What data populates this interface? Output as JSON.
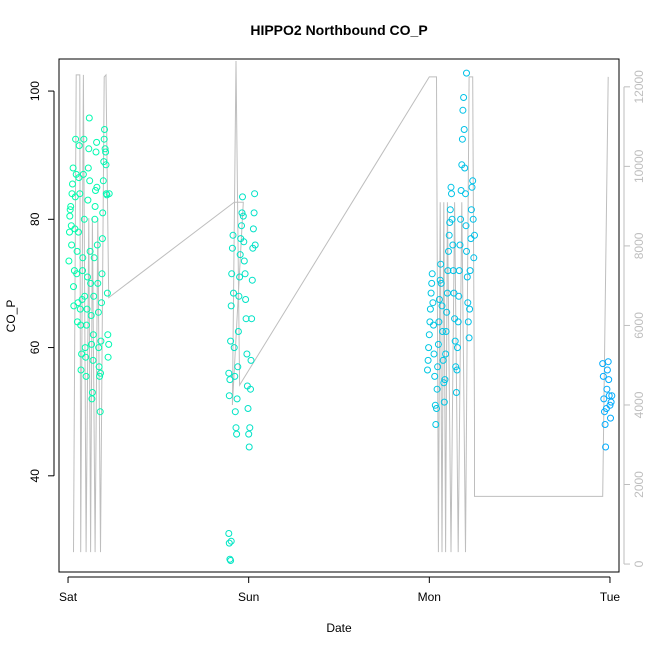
{
  "chart_data": {
    "type": "scatter",
    "title": "HIPPO2 Northbound CO_P",
    "xlabel": "Date",
    "ylabel": "CO_P",
    "x_axis": {
      "type": "date",
      "range_days": [
        -0.05,
        3.05
      ],
      "ticks": [
        {
          "label": "Sat",
          "day": 0
        },
        {
          "label": "Sun",
          "day": 1
        },
        {
          "label": "Mon",
          "day": 2
        },
        {
          "label": "Tue",
          "day": 3
        }
      ]
    },
    "y_axis": {
      "range": [
        25,
        105
      ],
      "ticks": [
        40,
        60,
        80,
        100
      ]
    },
    "y2_axis": {
      "side": "right",
      "color": "#bebebe",
      "range": [
        -200,
        12700
      ],
      "ticks": [
        0,
        2000,
        4000,
        6000,
        8000,
        10000,
        12000
      ]
    },
    "grid": false,
    "legend": "none",
    "colors": {
      "series_start": "#00ffaa",
      "series_end": "#00aaff",
      "altitude_line": "#bebebe"
    },
    "series": [
      {
        "kind": "points",
        "color_gradient": [
          "#00ffaa",
          "#00aaff"
        ],
        "points": [
          [
            0.005,
            73.5
          ],
          [
            0.008,
            78
          ],
          [
            0.01,
            80.5
          ],
          [
            0.012,
            81.5
          ],
          [
            0.015,
            82
          ],
          [
            0.018,
            79
          ],
          [
            0.02,
            76
          ],
          [
            0.022,
            84
          ],
          [
            0.025,
            85.5
          ],
          [
            0.028,
            88
          ],
          [
            0.03,
            69.5
          ],
          [
            0.032,
            66.5
          ],
          [
            0.035,
            72
          ],
          [
            0.038,
            78.5
          ],
          [
            0.04,
            83.5
          ],
          [
            0.042,
            92.5
          ],
          [
            0.045,
            87
          ],
          [
            0.048,
            71.5
          ],
          [
            0.05,
            75
          ],
          [
            0.052,
            64
          ],
          [
            0.055,
            67
          ],
          [
            0.058,
            78
          ],
          [
            0.06,
            86.5
          ],
          [
            0.062,
            91.5
          ],
          [
            0.065,
            84
          ],
          [
            0.068,
            66
          ],
          [
            0.07,
            63.5
          ],
          [
            0.072,
            56.5
          ],
          [
            0.075,
            59
          ],
          [
            0.078,
            67.5
          ],
          [
            0.08,
            72
          ],
          [
            0.082,
            74
          ],
          [
            0.085,
            87
          ],
          [
            0.088,
            92.5
          ],
          [
            0.09,
            80
          ],
          [
            0.092,
            68
          ],
          [
            0.095,
            60
          ],
          [
            0.098,
            58.5
          ],
          [
            0.1,
            55.5
          ],
          [
            0.102,
            63.5
          ],
          [
            0.105,
            66
          ],
          [
            0.108,
            71
          ],
          [
            0.11,
            83
          ],
          [
            0.112,
            88
          ],
          [
            0.115,
            91
          ],
          [
            0.118,
            95.8
          ],
          [
            0.12,
            86
          ],
          [
            0.122,
            75
          ],
          [
            0.125,
            70
          ],
          [
            0.128,
            65
          ],
          [
            0.13,
            60.5
          ],
          [
            0.132,
            52
          ],
          [
            0.135,
            53
          ],
          [
            0.138,
            58
          ],
          [
            0.14,
            62
          ],
          [
            0.142,
            68
          ],
          [
            0.145,
            74
          ],
          [
            0.148,
            80
          ],
          [
            0.15,
            82
          ],
          [
            0.152,
            84.5
          ],
          [
            0.155,
            90.5
          ],
          [
            0.158,
            92
          ],
          [
            0.16,
            85
          ],
          [
            0.162,
            76
          ],
          [
            0.165,
            70
          ],
          [
            0.168,
            65.5
          ],
          [
            0.17,
            60
          ],
          [
            0.172,
            57
          ],
          [
            0.175,
            55.5
          ],
          [
            0.178,
            50
          ],
          [
            0.18,
            56
          ],
          [
            0.182,
            61
          ],
          [
            0.185,
            67
          ],
          [
            0.188,
            71.5
          ],
          [
            0.19,
            77
          ],
          [
            0.192,
            81
          ],
          [
            0.195,
            86
          ],
          [
            0.198,
            89
          ],
          [
            0.2,
            92.5
          ],
          [
            0.202,
            94
          ],
          [
            0.205,
            91
          ],
          [
            0.208,
            90.5
          ],
          [
            0.21,
            88.5
          ],
          [
            0.212,
            84
          ],
          [
            0.215,
            83.8
          ],
          [
            0.218,
            68.5
          ],
          [
            0.22,
            62
          ],
          [
            0.222,
            58.5
          ],
          [
            0.225,
            60.5
          ],
          [
            0.228,
            84
          ],
          [
            0.89,
            56
          ],
          [
            0.893,
            52.5
          ],
          [
            0.896,
            55
          ],
          [
            0.9,
            61
          ],
          [
            0.903,
            66.5
          ],
          [
            0.906,
            71.5
          ],
          [
            0.91,
            75.5
          ],
          [
            0.913,
            77.5
          ],
          [
            0.916,
            68.5
          ],
          [
            0.92,
            60
          ],
          [
            0.923,
            55.5
          ],
          [
            0.926,
            50
          ],
          [
            0.93,
            47.5
          ],
          [
            0.933,
            46.5
          ],
          [
            0.936,
            52
          ],
          [
            0.94,
            57
          ],
          [
            0.943,
            62.5
          ],
          [
            0.946,
            68
          ],
          [
            0.95,
            71
          ],
          [
            0.953,
            74.5
          ],
          [
            0.956,
            77
          ],
          [
            0.96,
            79
          ],
          [
            0.963,
            81
          ],
          [
            0.966,
            83.5
          ],
          [
            0.97,
            80.5
          ],
          [
            0.973,
            76.5
          ],
          [
            0.976,
            73.5
          ],
          [
            0.98,
            71.5
          ],
          [
            0.983,
            67.5
          ],
          [
            0.986,
            64.5
          ],
          [
            0.99,
            59
          ],
          [
            0.993,
            54
          ],
          [
            0.996,
            50.5
          ],
          [
            1.0,
            46.5
          ],
          [
            1.003,
            44.5
          ],
          [
            1.006,
            47.5
          ],
          [
            1.01,
            53.5
          ],
          [
            1.013,
            58
          ],
          [
            1.016,
            64.5
          ],
          [
            1.02,
            70.5
          ],
          [
            1.023,
            75.5
          ],
          [
            1.026,
            78.5
          ],
          [
            1.03,
            81
          ],
          [
            1.033,
            84
          ],
          [
            1.036,
            76
          ],
          [
            0.89,
            31
          ],
          [
            0.893,
            29.5
          ],
          [
            0.896,
            27
          ],
          [
            0.9,
            26.8
          ],
          [
            0.903,
            29.8
          ],
          [
            1.99,
            56.5
          ],
          [
            1.993,
            58
          ],
          [
            1.996,
            60
          ],
          [
            2.0,
            62
          ],
          [
            2.003,
            64
          ],
          [
            2.006,
            66
          ],
          [
            2.01,
            68.5
          ],
          [
            2.013,
            70
          ],
          [
            2.016,
            71.5
          ],
          [
            2.02,
            67
          ],
          [
            2.023,
            63.5
          ],
          [
            2.026,
            59
          ],
          [
            2.03,
            55.5
          ],
          [
            2.033,
            51
          ],
          [
            2.036,
            48
          ],
          [
            2.04,
            50.5
          ],
          [
            2.043,
            53.5
          ],
          [
            2.046,
            57
          ],
          [
            2.05,
            60.5
          ],
          [
            2.053,
            64
          ],
          [
            2.056,
            67.5
          ],
          [
            2.06,
            70.5
          ],
          [
            2.063,
            73
          ],
          [
            2.066,
            70
          ],
          [
            2.07,
            66.5
          ],
          [
            2.073,
            62.5
          ],
          [
            2.076,
            58
          ],
          [
            2.08,
            54.5
          ],
          [
            2.083,
            51.5
          ],
          [
            2.086,
            55
          ],
          [
            2.09,
            59
          ],
          [
            2.093,
            62.5
          ],
          [
            2.096,
            65.5
          ],
          [
            2.1,
            68.5
          ],
          [
            2.103,
            72
          ],
          [
            2.106,
            75
          ],
          [
            2.11,
            77.5
          ],
          [
            2.113,
            79.5
          ],
          [
            2.116,
            81.5
          ],
          [
            2.12,
            85
          ],
          [
            2.123,
            84
          ],
          [
            2.126,
            80
          ],
          [
            2.13,
            76
          ],
          [
            2.133,
            72
          ],
          [
            2.136,
            68.5
          ],
          [
            2.14,
            64.5
          ],
          [
            2.143,
            61
          ],
          [
            2.146,
            57
          ],
          [
            2.15,
            53
          ],
          [
            2.153,
            56.5
          ],
          [
            2.156,
            60
          ],
          [
            2.16,
            64
          ],
          [
            2.163,
            68
          ],
          [
            2.166,
            72
          ],
          [
            2.17,
            76
          ],
          [
            2.173,
            80
          ],
          [
            2.176,
            84.5
          ],
          [
            2.18,
            88.5
          ],
          [
            2.183,
            92.5
          ],
          [
            2.186,
            97
          ],
          [
            2.19,
            99
          ],
          [
            2.193,
            94
          ],
          [
            2.196,
            88
          ],
          [
            2.2,
            84
          ],
          [
            2.203,
            79
          ],
          [
            2.206,
            75
          ],
          [
            2.21,
            71
          ],
          [
            2.213,
            67
          ],
          [
            2.216,
            64
          ],
          [
            2.22,
            61.5
          ],
          [
            2.223,
            66
          ],
          [
            2.226,
            72
          ],
          [
            2.23,
            77
          ],
          [
            2.233,
            81.5
          ],
          [
            2.236,
            85
          ],
          [
            2.24,
            86
          ],
          [
            2.243,
            80
          ],
          [
            2.246,
            74
          ],
          [
            2.25,
            77.5
          ],
          [
            2.206,
            102.8
          ],
          [
            2.96,
            57.5
          ],
          [
            2.963,
            55.5
          ],
          [
            2.966,
            52
          ],
          [
            2.97,
            50
          ],
          [
            2.973,
            48
          ],
          [
            2.976,
            44.5
          ],
          [
            2.98,
            50.5
          ],
          [
            2.983,
            53.5
          ],
          [
            2.986,
            56.5
          ],
          [
            2.99,
            57.8
          ],
          [
            2.993,
            55
          ],
          [
            2.996,
            52.5
          ],
          [
            3.0,
            51
          ],
          [
            3.003,
            49
          ],
          [
            3.006,
            51.5
          ],
          [
            3.01,
            52.5
          ]
        ]
      },
      {
        "kind": "line",
        "axis": "y2",
        "color": "#bebebe",
        "points": [
          [
            0.03,
            300
          ],
          [
            0.045,
            12300
          ],
          [
            0.065,
            12300
          ],
          [
            0.07,
            300
          ],
          [
            0.085,
            12300
          ],
          [
            0.1,
            300
          ],
          [
            0.115,
            8700
          ],
          [
            0.125,
            300
          ],
          [
            0.135,
            8700
          ],
          [
            0.15,
            300
          ],
          [
            0.165,
            8700
          ],
          [
            0.18,
            300
          ],
          [
            0.2,
            12250
          ],
          [
            0.21,
            12300
          ],
          [
            0.225,
            6700
          ],
          [
            0.92,
            9100
          ],
          [
            0.97,
            9100
          ],
          [
            0.91,
            4000
          ],
          [
            0.93,
            12650
          ],
          [
            0.95,
            4500
          ],
          [
            2.0,
            12250
          ],
          [
            2.04,
            12250
          ],
          [
            2.05,
            300
          ],
          [
            2.06,
            9100
          ],
          [
            2.07,
            300
          ],
          [
            2.08,
            9100
          ],
          [
            2.09,
            300
          ],
          [
            2.1,
            9100
          ],
          [
            2.12,
            300
          ],
          [
            2.14,
            9100
          ],
          [
            2.16,
            300
          ],
          [
            2.18,
            9100
          ],
          [
            2.2,
            300
          ],
          [
            2.22,
            12250
          ],
          [
            2.24,
            12250
          ],
          [
            2.25,
            3500
          ],
          [
            2.25,
            1700
          ],
          [
            2.96,
            1700
          ],
          [
            2.99,
            12250
          ],
          [
            2.99,
            12250
          ]
        ]
      }
    ]
  }
}
